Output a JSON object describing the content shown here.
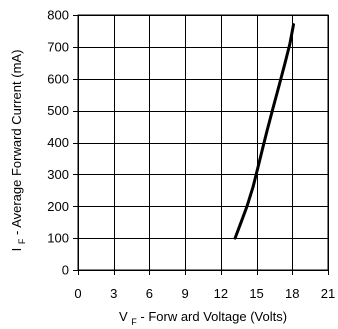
{
  "chart_data": {
    "type": "line",
    "xlabel": {
      "prefix": "V",
      "subscript": "F",
      "suffix": " - Forw ard Voltage (Volts)"
    },
    "ylabel": {
      "prefix": "I",
      "subscript": "F",
      "suffix": " -  Average Forward Current (mA)"
    },
    "xlim": [
      0,
      21
    ],
    "ylim": [
      0,
      800
    ],
    "x_ticks": [
      0,
      3,
      6,
      9,
      12,
      15,
      18,
      21
    ],
    "y_ticks": [
      0,
      100,
      200,
      300,
      400,
      500,
      600,
      700,
      800
    ],
    "grid": true,
    "series": [
      {
        "x": [
          13.2,
          13.7,
          14.2,
          14.7,
          15.1,
          15.5,
          15.9,
          16.4,
          16.9,
          17.4,
          17.8,
          18.1
        ],
        "y": [
          100,
          150,
          200,
          260,
          320,
          380,
          440,
          510,
          580,
          650,
          710,
          770
        ]
      }
    ]
  }
}
